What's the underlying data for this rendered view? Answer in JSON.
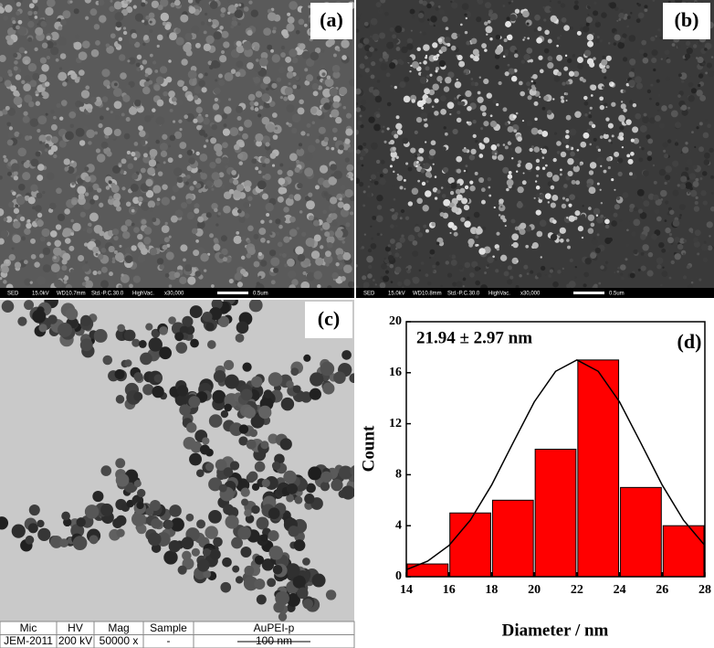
{
  "panels": {
    "a": {
      "label": "(a)",
      "info_bar": [
        "SED",
        "15.0kV",
        "WD10.7mm",
        "Std.-P.C.30.0",
        "HighVac.",
        "x30,000",
        "0.5um"
      ]
    },
    "b": {
      "label": "(b)",
      "info_bar": [
        "SED",
        "15.0kV",
        "WD10.8mm",
        "Std.-P.C.30.0",
        "HighVac.",
        "x30,000",
        "0.5um"
      ]
    },
    "c": {
      "label": "(c)",
      "table": {
        "header": [
          "Mic",
          "HV",
          "Mag",
          "Sample",
          "AuPEI-p"
        ],
        "row": [
          "JEM-2011",
          "200 kV",
          "50000 x",
          "-",
          "100 nm"
        ]
      }
    }
  },
  "chart_data": {
    "type": "histogram",
    "label": "(d)",
    "annotation": "21.94 ± 2.97 nm",
    "x_label": "Diameter / nm",
    "y_label": "Count",
    "bins": [
      14,
      16,
      18,
      20,
      22,
      24,
      26,
      28
    ],
    "values": [
      1,
      5,
      6,
      10,
      17,
      7,
      4
    ],
    "color": "#ff0000",
    "fit": {
      "x": [
        14,
        15,
        16,
        17,
        18,
        19,
        20,
        21,
        22,
        23,
        24,
        25,
        26,
        27,
        28
      ],
      "values": [
        0.55,
        1.22,
        2.45,
        4.43,
        7.19,
        10.48,
        13.71,
        16.11,
        17,
        16.11,
        13.71,
        10.48,
        7.19,
        4.43,
        2.45
      ],
      "color": "#000000"
    },
    "xlim": [
      14,
      28
    ],
    "xticks": [
      14,
      16,
      18,
      20,
      22,
      24,
      26,
      28
    ],
    "ylim": [
      0,
      20
    ],
    "yticks": [
      0,
      4,
      8,
      12,
      16,
      20
    ]
  }
}
